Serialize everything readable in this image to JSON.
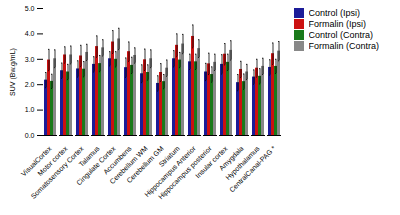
{
  "chart_data": {
    "type": "bar",
    "categories": [
      "VisualCortex",
      "Motor cortex",
      "Somatosensory Cortex",
      "Talamus",
      "Cingulate Cortex",
      "Accumbens",
      "Cerebellum WM",
      "Cerebellum GM",
      "Striatum",
      "Hippocampus Anterior",
      "Hippocampus posterior",
      "Insular cortex",
      "Amygdala",
      "Hypothalamus",
      "CentralCanal-PAG *"
    ],
    "series": [
      {
        "name": "Control (Ipsi)",
        "color": "#1c1c99",
        "values": [
          2.18,
          2.55,
          2.62,
          2.8,
          3.02,
          2.67,
          2.43,
          2.05,
          3.02,
          2.9,
          2.5,
          2.8,
          2.08,
          2.3,
          2.68
        ],
        "errors": [
          0.3,
          0.3,
          0.32,
          0.3,
          0.28,
          0.38,
          0.35,
          0.3,
          0.32,
          0.3,
          0.34,
          0.38,
          0.32,
          0.28,
          0.3
        ]
      },
      {
        "name": "Formalin (Ipsi)",
        "color": "#cc1111",
        "values": [
          2.97,
          3.17,
          3.13,
          3.5,
          3.68,
          3.3,
          2.98,
          2.48,
          3.55,
          3.9,
          2.82,
          3.2,
          2.6,
          2.65,
          3.22
        ],
        "errors": [
          0.42,
          0.32,
          0.42,
          0.42,
          0.45,
          0.38,
          0.42,
          0.35,
          0.45,
          0.45,
          0.42,
          0.42,
          0.32,
          0.35,
          0.42
        ]
      },
      {
        "name": "Control (Contra)",
        "color": "#1a7a1a",
        "values": [
          2.13,
          2.5,
          2.61,
          2.83,
          3.0,
          2.76,
          2.48,
          2.12,
          2.97,
          2.9,
          2.4,
          2.88,
          2.12,
          2.33,
          2.72
        ],
        "errors": [
          0.28,
          0.3,
          0.3,
          0.32,
          0.3,
          0.32,
          0.3,
          0.28,
          0.3,
          0.3,
          0.3,
          0.32,
          0.3,
          0.3,
          0.28
        ]
      },
      {
        "name": "Formalin (Contra)",
        "color": "#888888",
        "values": [
          3.02,
          3.17,
          3.27,
          3.45,
          3.8,
          3.15,
          3.02,
          2.65,
          3.6,
          3.42,
          2.88,
          3.35,
          2.5,
          2.72,
          3.32
        ],
        "errors": [
          0.35,
          0.35,
          0.32,
          0.32,
          0.42,
          0.3,
          0.35,
          0.32,
          0.38,
          0.35,
          0.32,
          0.38,
          0.3,
          0.32,
          0.38
        ]
      }
    ],
    "ylabel": "SUV (Bw.g/mL)",
    "ylim": [
      0,
      5
    ],
    "yticks": [
      0,
      1,
      2,
      3,
      4,
      5
    ],
    "grid": false,
    "legend": "upper right"
  }
}
